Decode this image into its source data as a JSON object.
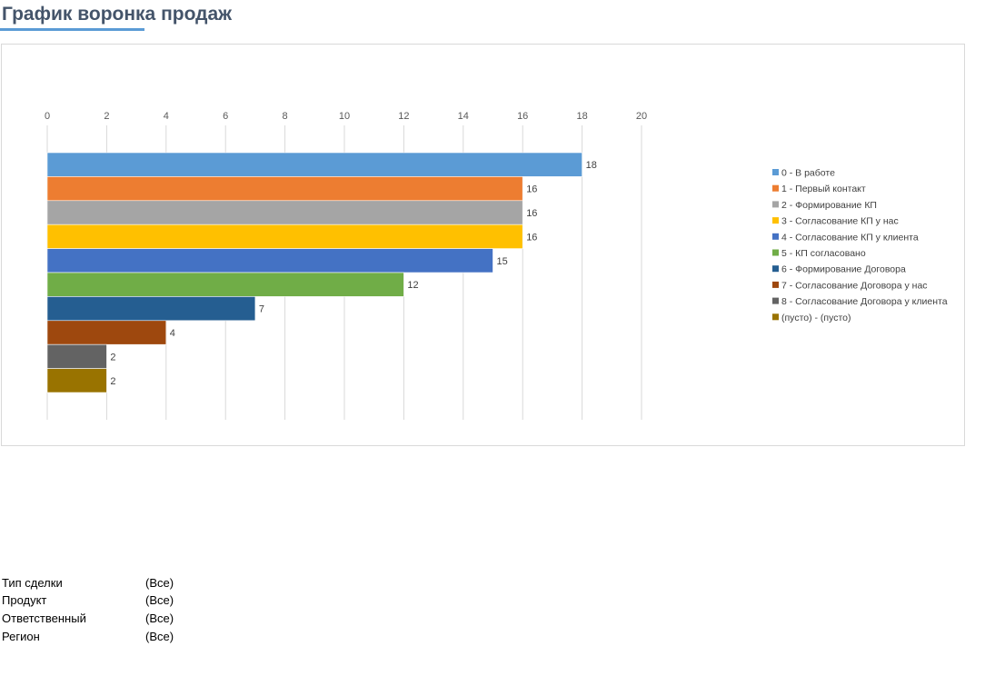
{
  "page": {
    "title": "График воронка продаж"
  },
  "filters": [
    {
      "label": "Тип сделки",
      "value": "(Все)"
    },
    {
      "label": "Продукт",
      "value": "(Все)"
    },
    {
      "label": "Ответственный",
      "value": "(Все)"
    },
    {
      "label": "Регион",
      "value": "(Все)"
    }
  ],
  "chart_data": {
    "type": "bar",
    "orientation": "horizontal",
    "xlim": [
      0,
      20
    ],
    "xticks": [
      "0",
      "2",
      "4",
      "6",
      "8",
      "10",
      "12",
      "14",
      "16",
      "18",
      "20"
    ],
    "x_axis_position": "top",
    "grid": true,
    "legend_position": "right",
    "series": [
      {
        "name": "0 - В работе",
        "value": 18,
        "color": "#5b9bd5"
      },
      {
        "name": "1 - Первый контакт",
        "value": 16,
        "color": "#ed7d31"
      },
      {
        "name": "2 - Формирование КП",
        "value": 16,
        "color": "#a5a5a5"
      },
      {
        "name": "3 - Согласование КП у нас",
        "value": 16,
        "color": "#ffc000"
      },
      {
        "name": "4 - Согласование КП у клиента",
        "value": 15,
        "color": "#4472c4"
      },
      {
        "name": "5 - КП согласовано",
        "value": 12,
        "color": "#70ad47"
      },
      {
        "name": "6 - Формирование Договора",
        "value": 7,
        "color": "#255e91"
      },
      {
        "name": "7 - Согласование Договора у нас",
        "value": 4,
        "color": "#9e480e"
      },
      {
        "name": "8 - Согласование Договора у клиента",
        "value": 2,
        "color": "#636363"
      },
      {
        "name": "(пусто) - (пусто)",
        "value": 2,
        "color": "#997300"
      }
    ]
  }
}
